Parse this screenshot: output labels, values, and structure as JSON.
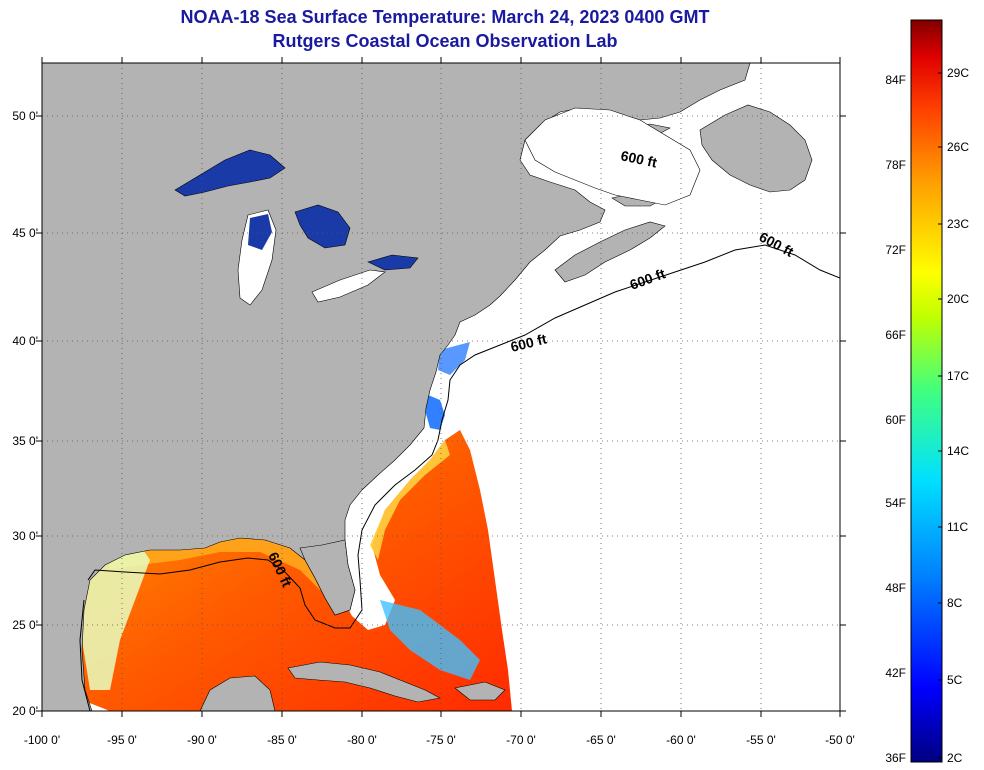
{
  "title_line1": "NOAA-18 Sea Surface Temperature:  March 24, 2023 0400 GMT",
  "title_line2": "Rutgers Coastal Ocean Observation Lab",
  "longitude_labels": [
    "-100 0'",
    "-95 0'",
    "-90 0'",
    "-85 0'",
    "-80 0'",
    "-75 0'",
    "-70 0'",
    "-65 0'",
    "-60 0'",
    "-55 0'",
    "-50 0'"
  ],
  "latitude_labels": [
    "50 0'",
    "45 0'",
    "40 0'",
    "35 0'",
    "30 0'",
    "25 0'",
    "20 0'"
  ],
  "contour_label": "600 ft",
  "colorbar": {
    "fahrenheit_labels": [
      "84F",
      "78F",
      "72F",
      "66F",
      "60F",
      "54F",
      "48F",
      "42F",
      "36F"
    ],
    "celsius_labels": [
      "29C",
      "26C",
      "23C",
      "20C",
      "17C",
      "14C",
      "11C",
      "8C",
      "5C",
      "2C"
    ]
  },
  "colors": {
    "land": "#b3b3b3",
    "ocean_no_data": "#ffffff",
    "title": "#1a1aa0",
    "scale": [
      "#000080",
      "#0000ff",
      "#0080ff",
      "#00e0ff",
      "#40ff80",
      "#c0ff00",
      "#ffff00",
      "#ffa000",
      "#ff4000",
      "#e00000",
      "#800000"
    ]
  }
}
